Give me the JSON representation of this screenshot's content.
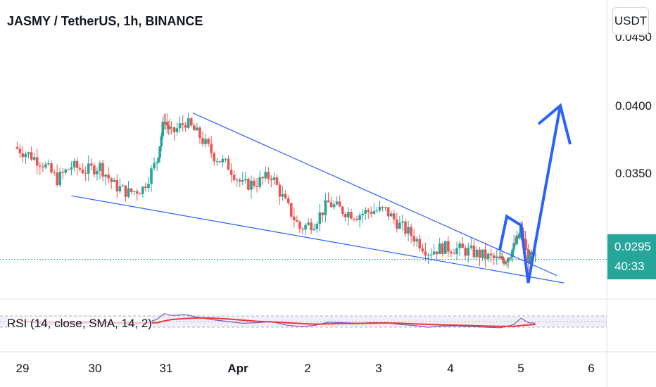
{
  "header": {
    "title": "JASMY / TetherUS, 1h, BINANCE",
    "unit": "USDT"
  },
  "price_tag": {
    "price": "0.0295",
    "countdown": "40:33"
  },
  "rsi": {
    "label": "RSI (14, close, SMA, 14, 2)"
  },
  "colors": {
    "up": "#26a69a",
    "down": "#ef5350",
    "trendline": "#2962ff",
    "arrow": "#2962ff",
    "rsi": "#7e57c2",
    "rsi_ma": "#e53935"
  },
  "chart_data": {
    "type": "candlestick",
    "title": "JASMY / TetherUS, 1h, BINANCE",
    "y_ticks": [
      "0.0450",
      "0.0400",
      "0.0350"
    ],
    "x_ticks": [
      "29",
      "30",
      "31",
      "Apr",
      "2",
      "3",
      "4",
      "5",
      "6"
    ],
    "ylim": [
      0.0265,
      0.046
    ],
    "xlim": [
      28.6,
      6.3
    ],
    "close_series": [
      {
        "d": 28.6,
        "c": 0.0371
      },
      {
        "d": 28.8,
        "c": 0.0366
      },
      {
        "d": 29.0,
        "c": 0.036
      },
      {
        "d": 29.2,
        "c": 0.0349
      },
      {
        "d": 29.4,
        "c": 0.0358
      },
      {
        "d": 29.6,
        "c": 0.0355
      },
      {
        "d": 29.8,
        "c": 0.0358
      },
      {
        "d": 30.0,
        "c": 0.0345
      },
      {
        "d": 30.2,
        "c": 0.034
      },
      {
        "d": 30.4,
        "c": 0.0343
      },
      {
        "d": 30.6,
        "c": 0.0362
      },
      {
        "d": 30.7,
        "c": 0.039
      },
      {
        "d": 30.8,
        "c": 0.038
      },
      {
        "d": 31.0,
        "c": 0.0388
      },
      {
        "d": 31.2,
        "c": 0.0378
      },
      {
        "d": 31.4,
        "c": 0.0365
      },
      {
        "d": 31.6,
        "c": 0.0358
      },
      {
        "d": 31.8,
        "c": 0.0345
      },
      {
        "d": 32.0,
        "c": 0.0347
      },
      {
        "d": 32.2,
        "c": 0.0352
      },
      {
        "d": 32.4,
        "c": 0.0333
      },
      {
        "d": 32.6,
        "c": 0.0316
      },
      {
        "d": 32.8,
        "c": 0.032
      },
      {
        "d": 33.0,
        "c": 0.0333
      },
      {
        "d": 33.2,
        "c": 0.0328
      },
      {
        "d": 33.4,
        "c": 0.0325
      },
      {
        "d": 33.6,
        "c": 0.0328
      },
      {
        "d": 33.8,
        "c": 0.0328
      },
      {
        "d": 34.0,
        "c": 0.0318
      },
      {
        "d": 34.2,
        "c": 0.031
      },
      {
        "d": 34.4,
        "c": 0.03
      },
      {
        "d": 34.6,
        "c": 0.0303
      },
      {
        "d": 34.8,
        "c": 0.0302
      },
      {
        "d": 35.0,
        "c": 0.03
      },
      {
        "d": 35.2,
        "c": 0.0297
      },
      {
        "d": 35.4,
        "c": 0.0294
      },
      {
        "d": 35.5,
        "c": 0.0296
      },
      {
        "d": 35.6,
        "c": 0.0303
      },
      {
        "d": 35.7,
        "c": 0.0314
      },
      {
        "d": 35.8,
        "c": 0.0296
      },
      {
        "d": 35.9,
        "c": 0.0295
      }
    ],
    "annotations": {
      "upper_trendline": {
        "from": {
          "d": 31.1,
          "y": 0.0394
        },
        "to": {
          "d": 36.2,
          "y": 0.0284
        }
      },
      "lower_trendline": {
        "from": {
          "d": 29.4,
          "y": 0.0338
        },
        "to": {
          "d": 36.3,
          "y": 0.0279
        }
      },
      "projection_arrow": [
        {
          "d": 35.4,
          "y": 0.0301
        },
        {
          "d": 35.5,
          "y": 0.0324
        },
        {
          "d": 35.7,
          "y": 0.0318
        },
        {
          "d": 35.8,
          "y": 0.0279
        },
        {
          "d": 36.25,
          "y": 0.0399
        }
      ]
    },
    "rsi": {
      "name": "RSI (14, close, SMA, 14, 2)",
      "ylim": [
        0,
        100
      ],
      "bands": [
        30,
        70
      ],
      "values": [
        52,
        48,
        44,
        38,
        46,
        50,
        52,
        44,
        40,
        42,
        58,
        78,
        72,
        74,
        64,
        56,
        50,
        44,
        46,
        50,
        38,
        32,
        36,
        48,
        46,
        44,
        46,
        46,
        40,
        36,
        30,
        34,
        34,
        32,
        30,
        28,
        32,
        40,
        62,
        46,
        44
      ],
      "ma": [
        50,
        50,
        49,
        47,
        46,
        46,
        46,
        46,
        46,
        45,
        46,
        52,
        57,
        61,
        63,
        62,
        59,
        55,
        51,
        49,
        46,
        43,
        41,
        42,
        43,
        43,
        44,
        45,
        44,
        42,
        40,
        38,
        37,
        36,
        34,
        33,
        33,
        33,
        36,
        38,
        40
      ]
    }
  }
}
